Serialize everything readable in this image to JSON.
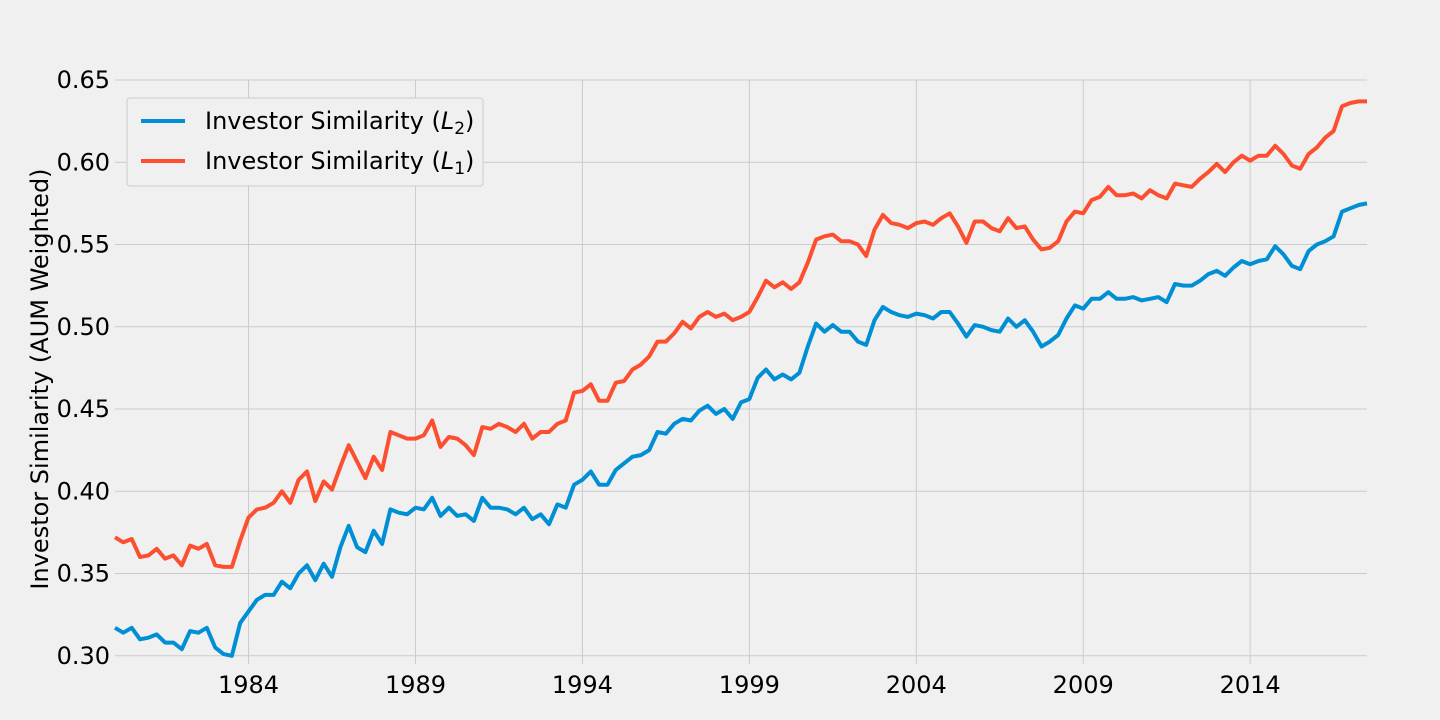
{
  "chart_data": {
    "type": "line",
    "ylabel": "Investor Similarity (AUM Weighted)",
    "xlim": [
      1980.0,
      2017.5
    ],
    "ylim": [
      0.295,
      0.65
    ],
    "xticks": [
      1984,
      1989,
      1994,
      1999,
      2004,
      2009,
      2014
    ],
    "yticks": [
      0.3,
      0.35,
      0.4,
      0.45,
      0.5,
      0.55,
      0.6,
      0.65
    ],
    "ytick_labels": [
      "0.30",
      "0.35",
      "0.40",
      "0.45",
      "0.50",
      "0.55",
      "0.60",
      "0.65"
    ],
    "grid": true,
    "legend_position": "top-left",
    "x_start": 1980.0,
    "x_step": 0.25,
    "series": [
      {
        "legend_prefix": "Investor Similarity (",
        "legend_var": "L",
        "legend_sub": "2",
        "legend_suffix": ")",
        "color": "#008fd5",
        "values": [
          0.317,
          0.314,
          0.317,
          0.31,
          0.311,
          0.313,
          0.308,
          0.308,
          0.304,
          0.315,
          0.314,
          0.317,
          0.305,
          0.301,
          0.3,
          0.32,
          0.327,
          0.334,
          0.337,
          0.337,
          0.345,
          0.341,
          0.35,
          0.355,
          0.346,
          0.356,
          0.348,
          0.366,
          0.379,
          0.366,
          0.363,
          0.376,
          0.368,
          0.389,
          0.387,
          0.386,
          0.39,
          0.389,
          0.396,
          0.385,
          0.39,
          0.385,
          0.386,
          0.382,
          0.396,
          0.39,
          0.39,
          0.389,
          0.386,
          0.39,
          0.383,
          0.386,
          0.38,
          0.392,
          0.39,
          0.404,
          0.407,
          0.412,
          0.404,
          0.404,
          0.413,
          0.417,
          0.421,
          0.422,
          0.425,
          0.436,
          0.435,
          0.441,
          0.444,
          0.443,
          0.449,
          0.452,
          0.447,
          0.45,
          0.444,
          0.454,
          0.456,
          0.469,
          0.474,
          0.468,
          0.471,
          0.468,
          0.472,
          0.488,
          0.502,
          0.497,
          0.501,
          0.497,
          0.497,
          0.491,
          0.489,
          0.504,
          0.512,
          0.509,
          0.507,
          0.506,
          0.508,
          0.507,
          0.505,
          0.509,
          0.509,
          0.502,
          0.494,
          0.501,
          0.5,
          0.498,
          0.497,
          0.505,
          0.5,
          0.504,
          0.497,
          0.488,
          0.491,
          0.495,
          0.505,
          0.513,
          0.511,
          0.517,
          0.517,
          0.521,
          0.517,
          0.517,
          0.518,
          0.516,
          0.517,
          0.518,
          0.515,
          0.526,
          0.525,
          0.525,
          0.528,
          0.532,
          0.534,
          0.531,
          0.536,
          0.54,
          0.538,
          0.54,
          0.541,
          0.549,
          0.544,
          0.537,
          0.535,
          0.546,
          0.55,
          0.552,
          0.555,
          0.57,
          0.572,
          0.574,
          0.575
        ]
      },
      {
        "legend_prefix": "Investor Similarity (",
        "legend_var": "L",
        "legend_sub": "1",
        "legend_suffix": ")",
        "color": "#fc4f30",
        "values": [
          0.372,
          0.369,
          0.371,
          0.36,
          0.361,
          0.365,
          0.359,
          0.361,
          0.355,
          0.367,
          0.365,
          0.368,
          0.355,
          0.354,
          0.354,
          0.37,
          0.384,
          0.389,
          0.39,
          0.393,
          0.4,
          0.393,
          0.407,
          0.412,
          0.394,
          0.406,
          0.401,
          0.415,
          0.428,
          0.418,
          0.408,
          0.421,
          0.413,
          0.436,
          0.434,
          0.432,
          0.432,
          0.434,
          0.443,
          0.427,
          0.433,
          0.432,
          0.428,
          0.422,
          0.439,
          0.438,
          0.441,
          0.439,
          0.436,
          0.441,
          0.432,
          0.436,
          0.436,
          0.441,
          0.443,
          0.46,
          0.461,
          0.465,
          0.455,
          0.455,
          0.466,
          0.467,
          0.474,
          0.477,
          0.482,
          0.491,
          0.491,
          0.496,
          0.503,
          0.499,
          0.506,
          0.509,
          0.506,
          0.508,
          0.504,
          0.506,
          0.509,
          0.518,
          0.528,
          0.524,
          0.527,
          0.523,
          0.527,
          0.539,
          0.553,
          0.555,
          0.556,
          0.552,
          0.552,
          0.55,
          0.543,
          0.559,
          0.568,
          0.563,
          0.562,
          0.56,
          0.563,
          0.564,
          0.562,
          0.566,
          0.569,
          0.561,
          0.551,
          0.564,
          0.564,
          0.56,
          0.558,
          0.566,
          0.56,
          0.561,
          0.553,
          0.547,
          0.548,
          0.552,
          0.564,
          0.57,
          0.569,
          0.577,
          0.579,
          0.585,
          0.58,
          0.58,
          0.581,
          0.578,
          0.583,
          0.58,
          0.578,
          0.587,
          0.586,
          0.585,
          0.59,
          0.594,
          0.599,
          0.594,
          0.6,
          0.604,
          0.601,
          0.604,
          0.604,
          0.61,
          0.605,
          0.598,
          0.596,
          0.605,
          0.609,
          0.615,
          0.619,
          0.634,
          0.636,
          0.637,
          0.637
        ]
      }
    ]
  }
}
